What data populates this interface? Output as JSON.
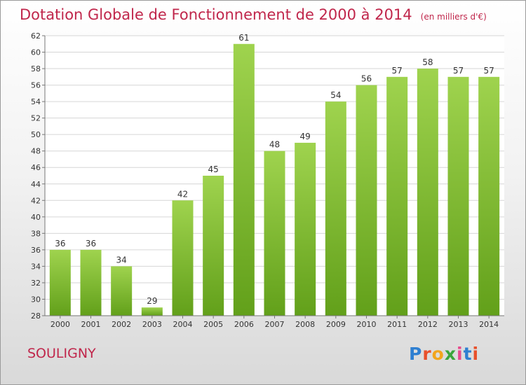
{
  "header": {
    "title": "Dotation Globale de Fonctionnement de 2000 à 2014",
    "subtitle": "(en milliers d'€)"
  },
  "footer": {
    "commune": "SOULIGNY",
    "logo_text": "Proxiti"
  },
  "colors": {
    "accent": "#c0264b",
    "bar_light": "#9fd34e",
    "bar_dark": "#62a01a"
  },
  "chart_data": {
    "type": "bar",
    "title": "Dotation Globale de Fonctionnement de 2000 à 2014",
    "subtitle": "(en milliers d'€)",
    "categories": [
      "2000",
      "2001",
      "2002",
      "2003",
      "2004",
      "2005",
      "2006",
      "2007",
      "2008",
      "2009",
      "2010",
      "2011",
      "2012",
      "2013",
      "2014"
    ],
    "values": [
      36,
      36,
      34,
      29,
      42,
      45,
      61,
      48,
      49,
      54,
      56,
      57,
      58,
      57,
      57
    ],
    "ylim": [
      28,
      62
    ],
    "yticks": [
      28,
      30,
      32,
      34,
      36,
      38,
      40,
      42,
      44,
      46,
      48,
      50,
      52,
      54,
      56,
      58,
      60,
      62
    ],
    "grid": true
  }
}
